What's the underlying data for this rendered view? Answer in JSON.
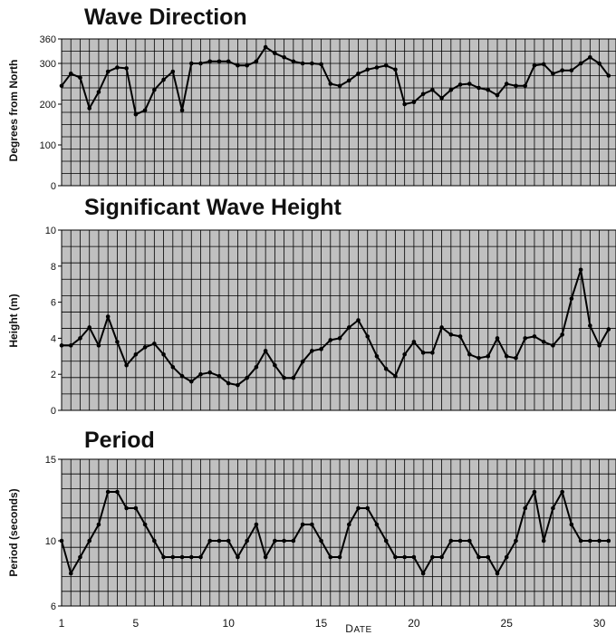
{
  "chart_data": [
    {
      "type": "line",
      "title": "Wave Direction",
      "ylabel": "Degrees from North",
      "ylim": [
        0,
        360
      ],
      "yticks": [
        0,
        100,
        200,
        300,
        360
      ],
      "xlim": [
        1,
        30.9
      ],
      "grid": true,
      "background": "#c0c0c0",
      "line_color": "#000000",
      "x": [
        1,
        1.5,
        2,
        2.5,
        3,
        3.5,
        4,
        4.5,
        5,
        5.5,
        6,
        6.5,
        7,
        7.5,
        8,
        8.5,
        9,
        9.5,
        10,
        10.5,
        11,
        11.5,
        12,
        12.5,
        13,
        13.5,
        14,
        14.5,
        15,
        15.5,
        16,
        16.5,
        17,
        17.5,
        18,
        18.5,
        19,
        19.5,
        20,
        20.5,
        21,
        21.5,
        22,
        22.5,
        23,
        23.5,
        24,
        24.5,
        25,
        25.5,
        26,
        26.5,
        27,
        27.5,
        28,
        28.5,
        29,
        29.5,
        30,
        30.5
      ],
      "y": [
        245,
        275,
        265,
        190,
        230,
        280,
        290,
        288,
        175,
        185,
        235,
        260,
        280,
        185,
        300,
        300,
        305,
        305,
        305,
        295,
        295,
        305,
        340,
        325,
        315,
        305,
        300,
        300,
        298,
        250,
        245,
        258,
        275,
        285,
        290,
        295,
        285,
        200,
        205,
        225,
        235,
        215,
        235,
        248,
        250,
        240,
        235,
        222,
        250,
        245,
        245,
        295,
        298,
        275,
        283,
        283,
        300,
        315,
        300,
        270
      ]
    },
    {
      "type": "line",
      "title": "Significant Wave Height",
      "ylabel": "Height (m)",
      "ylim": [
        0,
        10
      ],
      "yticks": [
        0,
        2,
        4,
        6,
        8,
        10
      ],
      "xlim": [
        1,
        30.9
      ],
      "grid": true,
      "background": "#c0c0c0",
      "line_color": "#000000",
      "x": [
        1,
        1.5,
        2,
        2.5,
        3,
        3.5,
        4,
        4.5,
        5,
        5.5,
        6,
        6.5,
        7,
        7.5,
        8,
        8.5,
        9,
        9.5,
        10,
        10.5,
        11,
        11.5,
        12,
        12.5,
        13,
        13.5,
        14,
        14.5,
        15,
        15.5,
        16,
        16.5,
        17,
        17.5,
        18,
        18.5,
        19,
        19.5,
        20,
        20.5,
        21,
        21.5,
        22,
        22.5,
        23,
        23.5,
        24,
        24.5,
        25,
        25.5,
        26,
        26.5,
        27,
        27.5,
        28,
        28.5,
        29,
        29.5,
        30,
        30.5
      ],
      "y": [
        3.6,
        3.6,
        4.0,
        4.6,
        3.6,
        5.2,
        3.8,
        2.5,
        3.1,
        3.5,
        3.7,
        3.1,
        2.4,
        1.9,
        1.6,
        2.0,
        2.1,
        1.9,
        1.5,
        1.4,
        1.8,
        2.4,
        3.3,
        2.5,
        1.8,
        1.8,
        2.7,
        3.3,
        3.4,
        3.9,
        4.0,
        4.6,
        5.0,
        4.1,
        3.0,
        2.3,
        1.9,
        3.1,
        3.8,
        3.2,
        3.2,
        4.6,
        4.2,
        4.1,
        3.1,
        2.9,
        3.0,
        4.0,
        3.0,
        2.9,
        4.0,
        4.1,
        3.8,
        3.6,
        4.2,
        6.2,
        7.8,
        4.7,
        3.6,
        4.5
      ]
    },
    {
      "type": "line",
      "title": "Period",
      "ylabel": "Period (seconds)",
      "xlabel": "Date",
      "ylim": [
        6,
        15
      ],
      "yticks": [
        6,
        10,
        15
      ],
      "xlim": [
        1,
        30.9
      ],
      "xticks": [
        1,
        5,
        10,
        15,
        20,
        25,
        30
      ],
      "grid": true,
      "background": "#c0c0c0",
      "line_color": "#000000",
      "x": [
        1,
        1.5,
        2,
        2.5,
        3,
        3.5,
        4,
        4.5,
        5,
        5.5,
        6,
        6.5,
        7,
        7.5,
        8,
        8.5,
        9,
        9.5,
        10,
        10.5,
        11,
        11.5,
        12,
        12.5,
        13,
        13.5,
        14,
        14.5,
        15,
        15.5,
        16,
        16.5,
        17,
        17.5,
        18,
        18.5,
        19,
        19.5,
        20,
        20.5,
        21,
        21.5,
        22,
        22.5,
        23,
        23.5,
        24,
        24.5,
        25,
        25.5,
        26,
        26.5,
        27,
        27.5,
        28,
        28.5,
        29,
        29.5,
        30,
        30.5
      ],
      "y": [
        10,
        8,
        9,
        10,
        11,
        13,
        13,
        12,
        12,
        11,
        10,
        9,
        9,
        9,
        9,
        9,
        10,
        10,
        10,
        9,
        10,
        11,
        9,
        10,
        10,
        10,
        11,
        11,
        10,
        9,
        9,
        11,
        12,
        12,
        11,
        10,
        9,
        9,
        9,
        8,
        9,
        9,
        10,
        10,
        10,
        9,
        9,
        8,
        9,
        10,
        12,
        13,
        10,
        12,
        13,
        11,
        10,
        10,
        10,
        10
      ]
    }
  ]
}
